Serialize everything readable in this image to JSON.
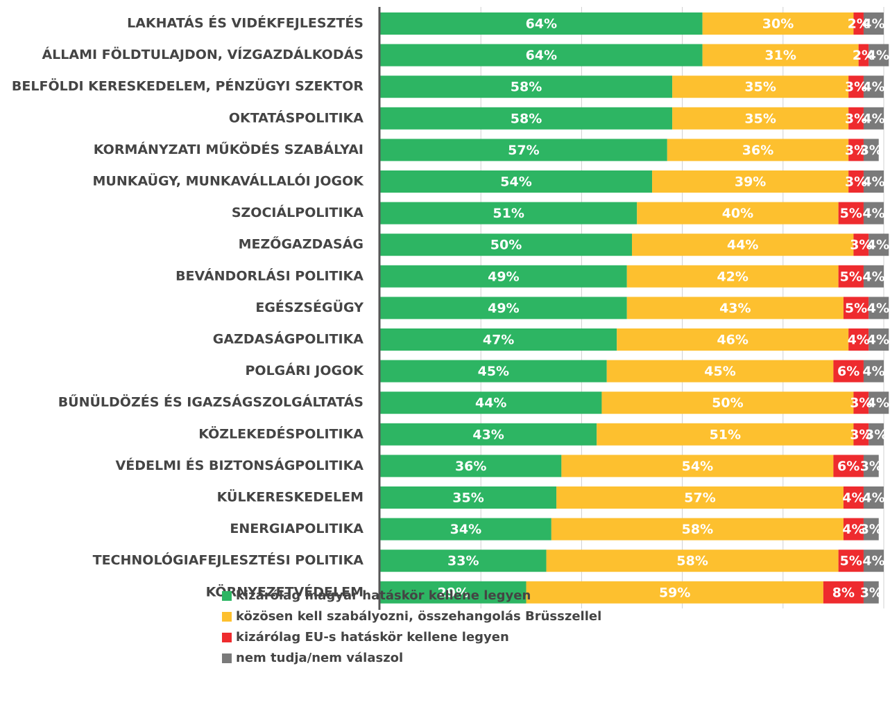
{
  "chart_data": {
    "type": "stacked-barh",
    "categories": [
      "LAKHATÁS ÉS VIDÉKFEJLESZTÉS",
      "ÁLLAMI FÖLDTULAJDON, VÍZGAZDÁLKODÁS",
      "BELFÖLDI KERESKEDELEM, PÉNZÜGYI SZEKTOR",
      "OKTATÁSPOLITIKA",
      "KORMÁNYZATI MŰKÖDÉS SZABÁLYAI",
      "MUNKAÜGY, MUNKAVÁLLALÓI JOGOK",
      "SZOCIÁLPOLITIKA",
      "MEZŐGAZDASÁG",
      "BEVÁNDORLÁSI POLITIKA",
      "EGÉSZSÉGÜGY",
      "GAZDASÁGPOLITIKA",
      "POLGÁRI JOGOK",
      "BŰNÜLDÖZÉS ÉS IGAZSÁGSZOLGÁLTATÁS",
      "KÖZLEKEDÉSPOLITIKA",
      "VÉDELMI ÉS BIZTONSÁGPOLITIKA",
      "KÜLKERESKEDELEM",
      "ENERGIAPOLITIKA",
      "TECHNOLÓGIAFEJLESZTÉSI POLITIKA",
      "KÖRNYEZETVÉDELEM"
    ],
    "series": [
      {
        "name": "kizárólag magyar hatáskör kellene legyen",
        "color": "#2db563",
        "values": [
          64,
          64,
          58,
          58,
          57,
          54,
          51,
          50,
          49,
          49,
          47,
          45,
          44,
          43,
          36,
          35,
          34,
          33,
          29
        ],
        "value_labels": [
          "64%",
          "64%",
          "58%",
          "58%",
          "57%",
          "54%",
          "51%",
          "50%",
          "49%",
          "49%",
          "47%",
          "45%",
          "44%",
          "43%",
          "36%",
          "35%",
          "34%",
          "33%",
          "29%"
        ]
      },
      {
        "name": "közösen kell szabályozni, összehangolás Brüsszellel",
        "color": "#fdc02f",
        "values": [
          30,
          31,
          35,
          35,
          36,
          39,
          40,
          44,
          42,
          43,
          46,
          45,
          50,
          51,
          54,
          57,
          58,
          58,
          59
        ],
        "value_labels": [
          "30%",
          "31%",
          "35%",
          "35%",
          "36%",
          "39%",
          "40%",
          "44%",
          "42%",
          "43%",
          "46%",
          "45%",
          "50%",
          "51%",
          "54%",
          "57%",
          "58%",
          "58%",
          "59%"
        ]
      },
      {
        "name": "kizárólag EU-s hatáskör kellene legyen",
        "color": "#ee2b2e",
        "values": [
          2,
          2,
          3,
          3,
          3,
          3,
          5,
          3,
          5,
          5,
          4,
          6,
          3,
          3,
          6,
          4,
          4,
          5,
          8
        ],
        "value_labels": [
          "2%",
          "2%",
          "3%",
          "3%",
          "3%",
          "3%",
          "5%",
          "3%",
          "5%",
          "5%",
          "4%",
          "6%",
          "3%",
          "3%",
          "6%",
          "4%",
          "4%",
          "5%",
          "8%"
        ]
      },
      {
        "name": "nem tudja/nem válaszol",
        "color": "#7a7a7a",
        "values": [
          4,
          4,
          4,
          4,
          3,
          4,
          4,
          4,
          4,
          4,
          4,
          4,
          4,
          3,
          3,
          4,
          3,
          4,
          3
        ],
        "value_labels": [
          "4%",
          "4%",
          "4%",
          "4%",
          "3%",
          "4%",
          "4%",
          "4%",
          "4%",
          "4%",
          "4%",
          "4%",
          "4%",
          "3%",
          "3%",
          "4%",
          "3%",
          "4%",
          "3%"
        ]
      }
    ],
    "xlim": [
      0,
      100
    ],
    "xticks": [
      0,
      20,
      40,
      60,
      80,
      100
    ],
    "grid": true,
    "legend": "bottom"
  }
}
